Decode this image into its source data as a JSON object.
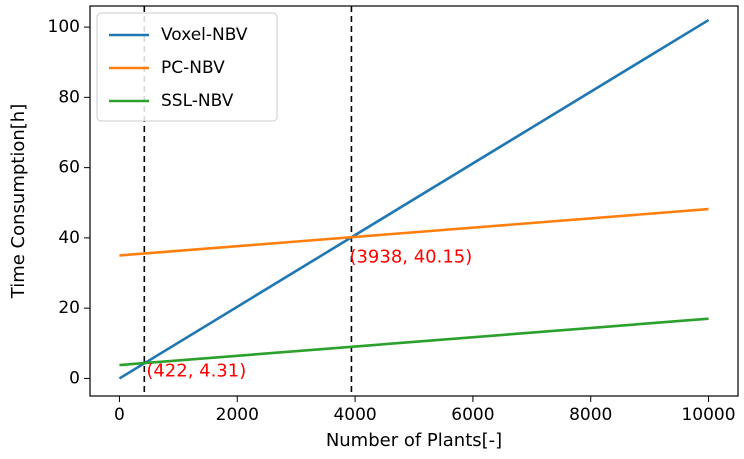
{
  "chart_data": {
    "type": "line",
    "xlabel": "Number of Plants[-]",
    "ylabel": "Time Consumption[h]",
    "xlim": [
      -500,
      10500
    ],
    "ylim": [
      -5,
      106
    ],
    "xticks": [
      0,
      2000,
      4000,
      6000,
      8000,
      10000
    ],
    "yticks": [
      0,
      20,
      40,
      60,
      80,
      100
    ],
    "grid": false,
    "legend_position": "top-left",
    "series": [
      {
        "name": "Voxel-NBV",
        "color": "#1f77b4",
        "x": [
          0,
          10000
        ],
        "y": [
          0,
          102
        ]
      },
      {
        "name": "PC-NBV",
        "color": "#ff7f0e",
        "x": [
          0,
          10000
        ],
        "y": [
          35,
          48.2
        ]
      },
      {
        "name": "SSL-NBV",
        "color": "#2ca02c",
        "x": [
          0,
          10000
        ],
        "y": [
          3.8,
          17
        ]
      }
    ],
    "vlines": [
      422,
      3938
    ],
    "annotations": [
      {
        "text": "(422, 4.31)",
        "x": 422,
        "y": 4.31,
        "color": "#ff0000"
      },
      {
        "text": "(3938, 40.15)",
        "x": 3938,
        "y": 40.15,
        "color": "#ff0000"
      }
    ]
  }
}
